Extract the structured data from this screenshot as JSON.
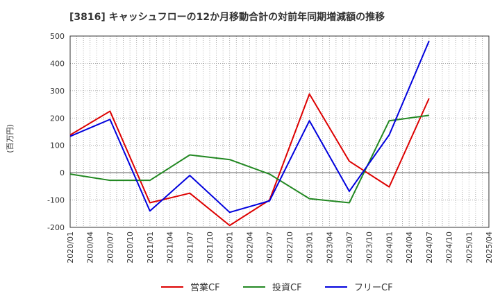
{
  "chart_data": {
    "type": "line",
    "title": "[3816]  キャッシュフローの12か月移動合計の対前年同期増減額の推移",
    "ylabel": "(百万円)",
    "xlabel": "",
    "ylim": [
      -200,
      500
    ],
    "yticks": [
      500,
      400,
      300,
      200,
      100,
      0,
      -100,
      -200
    ],
    "categories": [
      "2020/01",
      "2020/04",
      "2020/07",
      "2020/10",
      "2021/01",
      "2021/04",
      "2021/07",
      "2021/10",
      "2022/01",
      "2022/04",
      "2022/07",
      "2022/10",
      "2023/01",
      "2023/04",
      "2023/07",
      "2023/10",
      "2024/01",
      "2024/04",
      "2024/07",
      "2024/10",
      "2025/01",
      "2025/04"
    ],
    "grid": true,
    "legend_position": "bottom",
    "series": [
      {
        "name": "営業CF",
        "color": "#dd0000",
        "x": [
          "2020/01",
          "2020/07",
          "2021/01",
          "2021/07",
          "2022/01",
          "2022/07",
          "2023/01",
          "2023/07",
          "2024/01",
          "2024/07"
        ],
        "values": [
          138,
          225,
          -110,
          -75,
          -193,
          -100,
          288,
          42,
          -52,
          272
        ]
      },
      {
        "name": "投資CF",
        "color": "#228822",
        "x": [
          "2020/01",
          "2020/07",
          "2021/01",
          "2021/07",
          "2022/01",
          "2022/07",
          "2023/01",
          "2023/07",
          "2024/01",
          "2024/07"
        ],
        "values": [
          -5,
          -28,
          -28,
          65,
          48,
          -5,
          -95,
          -110,
          190,
          210
        ]
      },
      {
        "name": "フリーCF",
        "color": "#0000dd",
        "x": [
          "2020/01",
          "2020/07",
          "2021/01",
          "2021/07",
          "2022/01",
          "2022/07",
          "2023/01",
          "2023/07",
          "2024/01",
          "2024/07"
        ],
        "values": [
          133,
          195,
          -140,
          -10,
          -145,
          -103,
          190,
          -68,
          138,
          482
        ]
      }
    ]
  }
}
